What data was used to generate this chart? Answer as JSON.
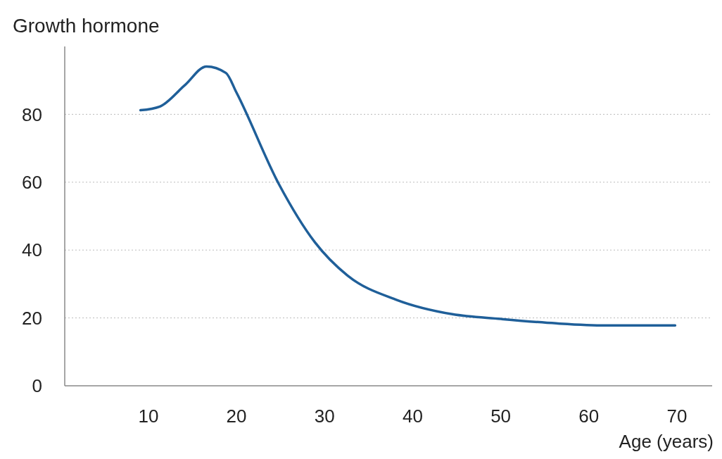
{
  "chart_data": {
    "type": "line",
    "title": "Growth hormone",
    "xlabel": "Age (years)",
    "x": [
      9.1,
      11.3,
      14.1,
      16.6,
      18.8,
      20,
      24.8,
      28.9,
      32.6,
      38.2,
      44.5,
      50,
      56.3,
      61.9,
      69.8
    ],
    "series": [
      {
        "color": "#1f5f99",
        "values": [
          81.2,
          82.3,
          88.5,
          94.1,
          92.2,
          86.4,
          59.5,
          42.3,
          32.5,
          25.3,
          21.1,
          19.7,
          18.4,
          17.8,
          17.8
        ]
      }
    ],
    "xlim": [
      0.5,
      74
    ],
    "xticks": [
      10,
      20,
      30,
      40,
      50,
      60,
      70
    ],
    "ylim": [
      0,
      100
    ],
    "yticks": [
      0,
      20,
      40,
      60,
      80
    ],
    "grid": "y",
    "marker": "none",
    "line_style": "solid"
  }
}
